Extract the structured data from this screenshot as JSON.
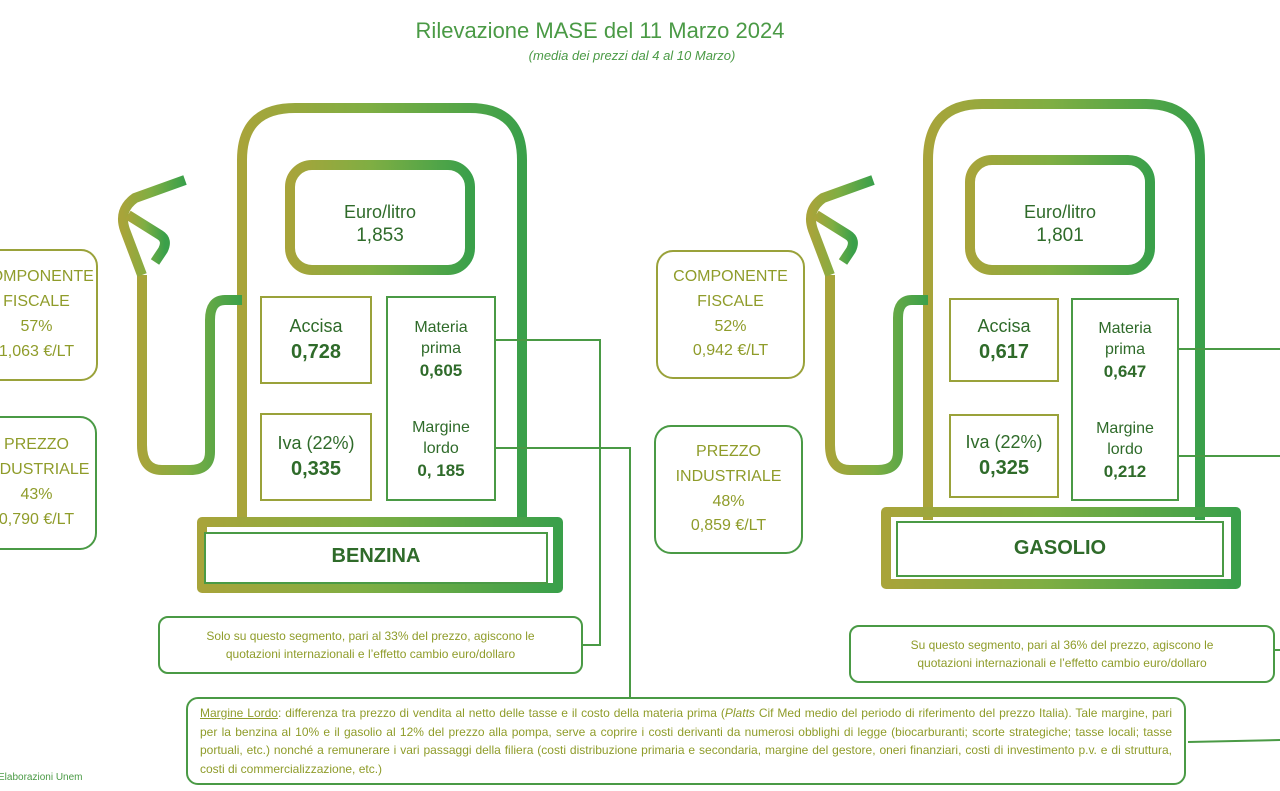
{
  "header": {
    "title": "Rilevazione MASE del 11 Marzo 2024",
    "subtitle": "(media dei prezzi dal 4 al 10 Marzo)"
  },
  "benzina": {
    "fuel": "BENZINA",
    "euro_label": "Euro/litro",
    "euro_value": "1,853",
    "accisa_label": "Accisa",
    "accisa_value": "0,728",
    "iva_label": "Iva (22%)",
    "iva_value": "0,335",
    "materia_label_1": "Materia",
    "materia_label_2": "prima",
    "materia_value": "0,605",
    "margine_label_1": "Margine",
    "margine_label_2": "lordo",
    "margine_value": "0, 185",
    "fiscale": {
      "line1": "COMPONENTE",
      "line2": "FISCALE",
      "pct": "57%",
      "value": "1,063 €/LT"
    },
    "industriale": {
      "line1": "PREZZO",
      "line2": "INDUSTRIALE",
      "pct": "43%",
      "value": "0,790 €/LT"
    },
    "segment_note_1": "Solo su questo segmento, pari al 33% del prezzo, agiscono le",
    "segment_note_2": "quotazioni internazionali e l’effetto cambio euro/dollaro"
  },
  "gasolio": {
    "fuel": "GASOLIO",
    "euro_label": "Euro/litro",
    "euro_value": "1,801",
    "accisa_label": "Accisa",
    "accisa_value": "0,617",
    "iva_label": "Iva (22%)",
    "iva_value": "0,325",
    "materia_label_1": "Materia",
    "materia_label_2": "prima",
    "materia_value": "0,647",
    "margine_label_1": "Margine",
    "margine_label_2": "lordo",
    "margine_value": "0,212",
    "fiscale": {
      "line1": "COMPONENTE",
      "line2": "FISCALE",
      "pct": "52%",
      "value": "0,942 €/LT"
    },
    "industriale": {
      "line1": "PREZZO",
      "line2": "INDUSTRIALE",
      "pct": "48%",
      "value": "0,859 €/LT"
    },
    "segment_note_1": "Su questo segmento, pari al 36% del prezzo, agiscono le",
    "segment_note_2": "quotazioni internazionali e l’effetto cambio euro/dollaro"
  },
  "definition": {
    "term": "Margine Lordo",
    "part1": ": differenza tra prezzo di vendita al netto delle tasse e il costo della materia prima (",
    "platts": "Platts",
    "part2": " Cif Med medio del periodo di riferimento del prezzo Italia). Tale margine, pari per la benzina al 10% e il gasolio al 12% del prezzo alla pompa, serve a coprire i costi derivanti da numerosi obblighi di legge (biocarburanti; scorte strategiche; tasse locali; tasse portuali, etc.) nonché a remunerare i vari passaggi della filiera (costi distribuzione primaria e secondaria, margine del gestore, oneri finanziari, costi di investimento p.v. e di struttura, costi di commercializzazione, etc.)"
  },
  "source": "Elaborazioni Unem",
  "colors": {
    "green": "#4a9a45",
    "olive": "#9aa23a",
    "dark_green": "#2f6b2a"
  }
}
